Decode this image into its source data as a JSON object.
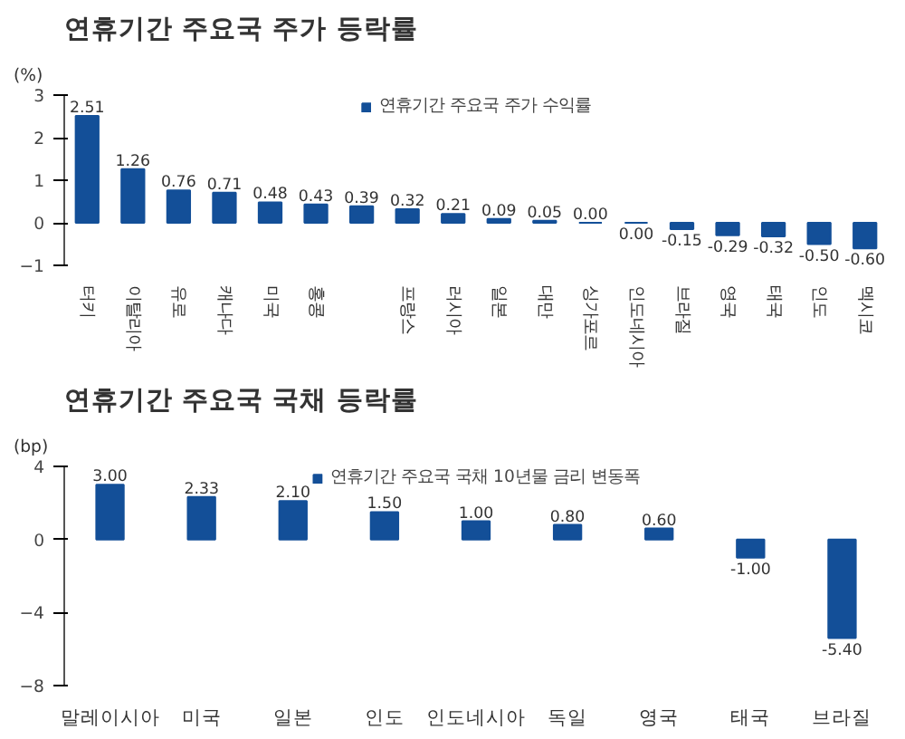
{
  "chart_data": [
    {
      "type": "bar",
      "title": "연휴기간 주요국 주가 등락률",
      "annotations": [
        "(%)"
      ],
      "categories": [
        "터키",
        "이탈리아",
        "유로",
        "캐나다",
        "미국",
        "홍콩",
        null,
        "프랑스",
        "러시아",
        "일본",
        "대만",
        "싱가포르",
        "인도네시아",
        "브라질",
        "영국",
        "태국",
        "인도",
        "멕시코"
      ],
      "series": [
        {
          "name": "연휴기간 주요국 주가 수익률",
          "color": "#134f98",
          "values": [
            2.51,
            1.26,
            0.76,
            0.71,
            0.48,
            0.43,
            0.39,
            0.32,
            0.21,
            0.09,
            0.05,
            0.0,
            0.0,
            -0.15,
            -0.29,
            -0.32,
            -0.5,
            -0.6
          ],
          "value_labels": [
            "2.51",
            "1.26",
            "0.76",
            "0.71",
            "0.48",
            "0.43",
            "0.39",
            "0.32",
            "0.21",
            "0.09",
            "0.05",
            "0.00",
            "0.00",
            "-0.15",
            "-0.29",
            "-0.32",
            "-0.50",
            "-0.60"
          ]
        }
      ],
      "ylim": [
        -1,
        3
      ],
      "yticks": [
        -1,
        0,
        1,
        2,
        3
      ],
      "grid": false,
      "legend": "top"
    },
    {
      "type": "bar",
      "title": "연휴기간 주요국 국채 등락률",
      "annotations": [
        "(bp)"
      ],
      "categories": [
        "말레이시아",
        "미국",
        "일본",
        "인도",
        "인도네시아",
        "독일",
        "영국",
        "태국",
        "브라질"
      ],
      "series": [
        {
          "name": "연휴기간 주요국 국채 10년물 금리 변동폭",
          "color": "#134f98",
          "values": [
            3.0,
            2.33,
            2.1,
            1.5,
            1.0,
            0.8,
            0.6,
            -1.0,
            -5.4
          ],
          "value_labels": [
            "3.00",
            "2.33",
            "2.10",
            "1.50",
            "1.00",
            "0.80",
            "0.60",
            "-1.00",
            "-5.40"
          ]
        }
      ],
      "ylim": [
        -8,
        4
      ],
      "yticks": [
        -8,
        -4,
        0,
        4
      ],
      "grid": false,
      "legend": "top"
    }
  ]
}
